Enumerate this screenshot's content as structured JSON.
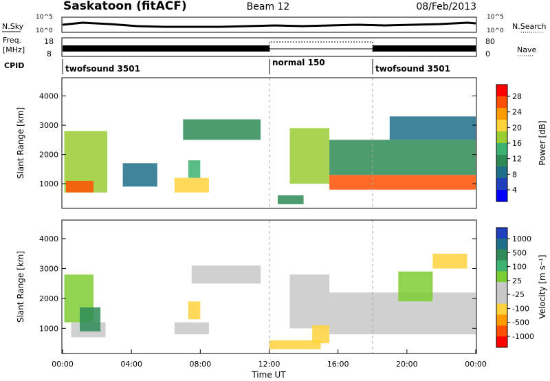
{
  "header": {
    "station": "Saskatoon (fitACF)",
    "beam": "Beam 12",
    "date": "08/Feb/2013"
  },
  "noise_panel": {
    "left_label": "N.Sky",
    "right_label": "N.Search",
    "scale_top": "10^5",
    "scale_bottom": "10^0"
  },
  "freq_panel": {
    "left_label_line1": "Freq.",
    "left_label_line2": "[MHz]",
    "left_ticks": [
      "18",
      "8"
    ],
    "right_label": "Nave",
    "right_ticks": [
      "80",
      "0"
    ]
  },
  "cpid_panel": {
    "label": "CPID",
    "segments": [
      {
        "label": "twofsound 3501",
        "start_hour": 0,
        "end_hour": 12
      },
      {
        "label": "normal 150",
        "start_hour": 12,
        "end_hour": 18
      },
      {
        "label": "twofsound 3501",
        "start_hour": 18,
        "end_hour": 24
      }
    ]
  },
  "power_colorbar": {
    "label": "Power [dB]",
    "ticks": [
      "28",
      "24",
      "20",
      "16",
      "12",
      "8",
      "4"
    ],
    "colors": [
      "#ff0000",
      "#ff5000",
      "#ff9a00",
      "#ffd23c",
      "#9acd32",
      "#3cb371",
      "#2e8b57",
      "#1f6f8b",
      "#1f3fbf",
      "#0000ff"
    ]
  },
  "velocity_colorbar": {
    "label": "Velocity [m s⁻¹]",
    "ticks": [
      "1000",
      "500",
      "100",
      "25",
      "-25",
      "-100",
      "-500",
      "-1000"
    ],
    "colors": [
      "#1f3fbf",
      "#1f6f8b",
      "#2e8b57",
      "#3cb371",
      "#7ccd32",
      "#c8c8c8",
      "#c8c8c8",
      "#ffd23c",
      "#ff9a00",
      "#ff5000",
      "#ff0000"
    ]
  },
  "chart_data": [
    {
      "type": "heatmap",
      "title": "",
      "xlabel": "Time UT",
      "ylabel": "Slant Range [km]",
      "xlim": [
        0,
        24
      ],
      "ylim": [
        180,
        4600
      ],
      "x_ticks": [
        "00:00",
        "04:00",
        "08:00",
        "12:00",
        "16:00",
        "20:00",
        "00:00"
      ],
      "y_ticks": [
        1000,
        2000,
        3000,
        4000
      ],
      "quantity": "Power [dB]",
      "color_range": [
        0,
        30
      ],
      "regions": [
        {
          "t0": 0.1,
          "t1": 2.6,
          "r0": 700,
          "r1": 2800,
          "value": 18
        },
        {
          "t0": 0.2,
          "t1": 1.8,
          "r0": 700,
          "r1": 1100,
          "value": 26
        },
        {
          "t0": 3.5,
          "t1": 5.5,
          "r0": 900,
          "r1": 1700,
          "value": 8
        },
        {
          "t0": 6.5,
          "t1": 8.5,
          "r0": 700,
          "r1": 1200,
          "value": 20
        },
        {
          "t0": 7.3,
          "t1": 8.0,
          "r0": 1200,
          "r1": 1800,
          "value": 14
        },
        {
          "t0": 7.0,
          "t1": 11.5,
          "r0": 2500,
          "r1": 3200,
          "value": 10
        },
        {
          "t0": 13.2,
          "t1": 15.5,
          "r0": 1000,
          "r1": 2900,
          "value": 16
        },
        {
          "t0": 15.5,
          "t1": 24,
          "r0": 800,
          "r1": 1300,
          "value": 24
        },
        {
          "t0": 15.5,
          "t1": 24,
          "r0": 1300,
          "r1": 2500,
          "value": 10
        },
        {
          "t0": 19,
          "t1": 24,
          "r0": 2500,
          "r1": 3300,
          "value": 8
        },
        {
          "t0": 12.5,
          "t1": 14.0,
          "r0": 300,
          "r1": 600,
          "value": 12
        }
      ]
    },
    {
      "type": "heatmap",
      "title": "",
      "xlabel": "Time UT",
      "ylabel": "Slant Range [km]",
      "xlim": [
        0,
        24
      ],
      "ylim": [
        180,
        4600
      ],
      "x_ticks": [
        "00:00",
        "04:00",
        "08:00",
        "12:00",
        "16:00",
        "20:00",
        "00:00"
      ],
      "y_ticks": [
        1000,
        2000,
        3000,
        4000
      ],
      "quantity": "Velocity [m s⁻¹]",
      "color_range": [
        -1000,
        1000
      ],
      "regions": [
        {
          "t0": 0.1,
          "t1": 1.8,
          "r0": 1200,
          "r1": 2800,
          "value": 200
        },
        {
          "t0": 0.5,
          "t1": 2.5,
          "r0": 700,
          "r1": 1200,
          "value": 0
        },
        {
          "t0": 1.0,
          "t1": 2.2,
          "r0": 900,
          "r1": 1700,
          "value": 600
        },
        {
          "t0": 6.5,
          "t1": 8.5,
          "r0": 800,
          "r1": 1200,
          "value": 0
        },
        {
          "t0": 7.3,
          "t1": 8.0,
          "r0": 1300,
          "r1": 1900,
          "value": -300
        },
        {
          "t0": 7.5,
          "t1": 11.5,
          "r0": 2500,
          "r1": 3100,
          "value": 0
        },
        {
          "t0": 13.2,
          "t1": 15.5,
          "r0": 1000,
          "r1": 2800,
          "value": 0
        },
        {
          "t0": 14.5,
          "t1": 15.5,
          "r0": 500,
          "r1": 1100,
          "value": -300
        },
        {
          "t0": 12.0,
          "t1": 15.0,
          "r0": 300,
          "r1": 600,
          "value": -300
        },
        {
          "t0": 15.5,
          "t1": 24,
          "r0": 800,
          "r1": 2200,
          "value": 0
        },
        {
          "t0": 19.5,
          "t1": 21.5,
          "r0": 1900,
          "r1": 2900,
          "value": 150
        },
        {
          "t0": 21.5,
          "t1": 23.5,
          "r0": 3000,
          "r1": 3500,
          "value": -300
        }
      ]
    }
  ]
}
